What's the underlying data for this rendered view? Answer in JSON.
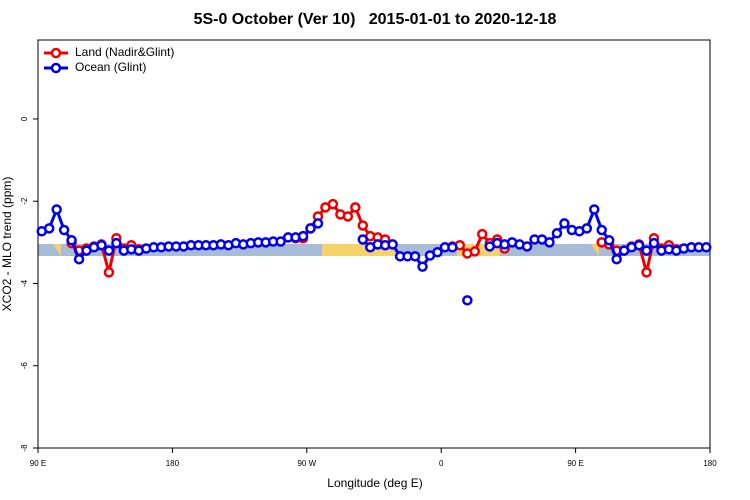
{
  "chart_data": {
    "type": "line",
    "title": "5S-0 October (Ver 10)   2015-01-01 to 2020-12-18",
    "xlabel": "Longitude (deg E)",
    "ylabel": "XCO2 - MLO trend (ppm)",
    "xlim": [
      90,
      540
    ],
    "xticks": [
      {
        "value": 90,
        "label": "90 E"
      },
      {
        "value": 180,
        "label": "180"
      },
      {
        "value": 270,
        "label": "90 W"
      },
      {
        "value": 360,
        "label": "0"
      },
      {
        "value": 450,
        "label": "90 E"
      },
      {
        "value": 540,
        "label": "180"
      }
    ],
    "ylim": [
      -8,
      1.92
    ],
    "yticks": [
      0,
      -2,
      -4,
      -6,
      -8
    ],
    "legend": "upper left",
    "x": [
      92.5,
      97.5,
      102.5,
      107.5,
      112.5,
      117.5,
      122.5,
      127.5,
      132.5,
      137.5,
      142.5,
      147.5,
      152.5,
      157.5,
      162.5,
      167.5,
      172.5,
      177.5,
      182.5,
      187.5,
      192.5,
      197.5,
      202.5,
      207.5,
      212.5,
      217.5,
      222.5,
      227.5,
      232.5,
      237.5,
      242.5,
      247.5,
      252.5,
      257.5,
      262.5,
      267.5,
      272.5,
      277.5,
      282.5,
      287.5,
      292.5,
      297.5,
      302.5,
      307.5,
      312.5,
      317.5,
      322.5,
      327.5,
      332.5,
      337.5,
      342.5,
      347.5,
      352.5,
      357.5,
      362.5,
      367.5,
      372.5,
      377.5,
      382.5,
      387.5,
      392.5,
      397.5,
      402.5,
      407.5,
      412.5,
      417.5,
      422.5,
      427.5,
      432.5,
      437.5,
      442.5,
      447.5,
      452.5,
      457.5,
      462.5,
      467.5,
      472.5,
      477.5,
      482.5,
      487.5,
      492.5,
      497.5,
      502.5,
      507.5,
      512.5,
      517.5,
      522.5,
      527.5,
      532.5,
      537.5
    ],
    "series": [
      {
        "name": "Land (Nadir&Glint)",
        "color": "#ee0000",
        "values": [
          null,
          null,
          null,
          null,
          -3.02,
          -3.2,
          -3.15,
          -3.1,
          -3.05,
          -3.73,
          -2.9,
          -3.15,
          -3.07,
          -3.17,
          null,
          null,
          null,
          null,
          null,
          null,
          null,
          null,
          null,
          null,
          null,
          null,
          null,
          null,
          null,
          null,
          null,
          null,
          null,
          null,
          -2.9,
          -2.9,
          -2.66,
          -2.37,
          -2.15,
          -2.07,
          -2.32,
          -2.37,
          -2.15,
          -2.59,
          -2.85,
          -2.88,
          -2.93,
          null,
          null,
          null,
          null,
          null,
          null,
          null,
          null,
          -3.1,
          -3.07,
          -3.27,
          -3.22,
          -2.8,
          -3.02,
          -2.93,
          -3.15,
          null,
          null,
          null,
          null,
          null,
          null,
          null,
          null,
          null,
          null,
          null,
          null,
          -3.0,
          -3.05,
          -3.2,
          -3.2,
          -3.1,
          -3.05,
          -3.73,
          -2.9,
          -3.15,
          -3.07,
          -3.17,
          null,
          null,
          null,
          null
        ]
      },
      {
        "name": "Ocean (Glint)",
        "color": "#0000ee",
        "values": [
          -2.73,
          -2.66,
          -2.2,
          -2.7,
          -2.95,
          -3.41,
          -3.2,
          -3.12,
          -3.07,
          -3.2,
          -3.02,
          -3.2,
          -3.17,
          -3.2,
          -3.15,
          -3.12,
          -3.12,
          -3.1,
          -3.1,
          -3.1,
          -3.07,
          -3.07,
          -3.07,
          -3.07,
          -3.05,
          -3.07,
          -3.02,
          -3.05,
          -3.02,
          -3.0,
          -3.0,
          -2.98,
          -2.98,
          -2.88,
          -2.88,
          -2.85,
          -2.66,
          -2.54,
          null,
          null,
          null,
          null,
          null,
          -2.93,
          -3.12,
          -3.05,
          -3.07,
          -3.05,
          -3.34,
          -3.34,
          -3.34,
          -3.59,
          -3.32,
          -3.24,
          -3.12,
          -3.12,
          null,
          -4.41,
          null,
          null,
          -3.1,
          -3.02,
          -3.05,
          -3.0,
          -3.05,
          -3.1,
          -2.93,
          -2.93,
          -3.0,
          -2.78,
          -2.54,
          -2.7,
          -2.73,
          -2.66,
          -2.2,
          -2.7,
          -2.95,
          -3.41,
          -3.2,
          -3.12,
          -3.07,
          -3.2,
          -3.02,
          -3.2,
          -3.17,
          -3.2,
          -3.15,
          -3.12,
          -3.12,
          -3.12
        ]
      }
    ]
  }
}
